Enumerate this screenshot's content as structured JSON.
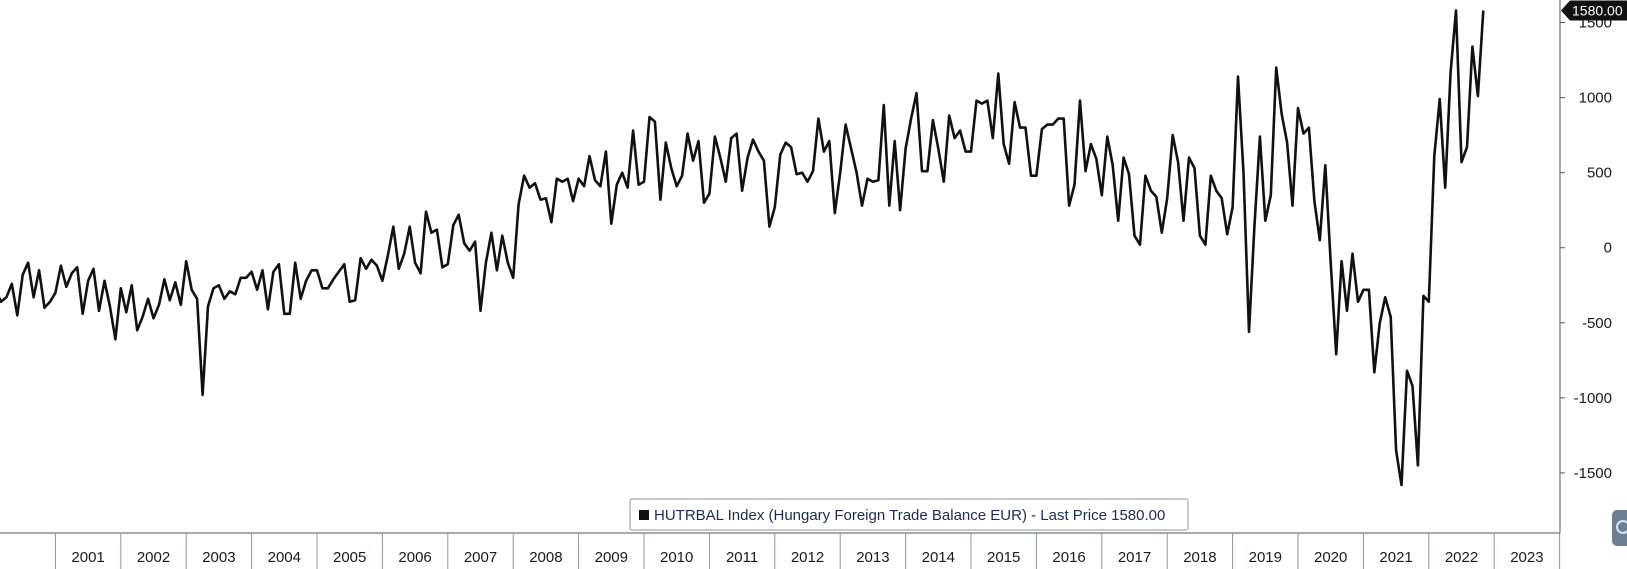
{
  "chart_data": {
    "type": "line",
    "title": "",
    "legend": "HUTRBAL Index (Hungary Foreign Trade Balance EUR) - Last Price 1580.00",
    "legend_placement": "bottom-center",
    "last_price_label": "1580.00",
    "line_color": "#111111",
    "ylim": [
      -1900,
      1650
    ],
    "y_ticks": [
      -1500,
      -1000,
      -500,
      0,
      500,
      1000,
      1500
    ],
    "y_tick_labels": [
      "-1500",
      "-1000",
      "-500",
      "0",
      "500",
      "1000",
      "1500"
    ],
    "x_tick_labels": [
      "2001",
      "2002",
      "2003",
      "2004",
      "2005",
      "2006",
      "2007",
      "2008",
      "2009",
      "2010",
      "2011",
      "2012",
      "2013",
      "2014",
      "2015",
      "2016",
      "2017",
      "2018",
      "2019",
      "2020",
      "2021",
      "2022",
      "2023"
    ],
    "grid": false,
    "series": [
      {
        "start": "2000-01",
        "frequency": "monthly",
        "values": [
          -280,
          -275,
          -360,
          -330,
          -240,
          -450,
          -180,
          -100,
          -330,
          -150,
          -400,
          -360,
          -300,
          -120,
          -260,
          -170,
          -130,
          -440,
          -220,
          -140,
          -420,
          -220,
          -390,
          -610,
          -270,
          -430,
          -250,
          -550,
          -460,
          -340,
          -470,
          -380,
          -210,
          -350,
          -230,
          -380,
          -90,
          -280,
          -340,
          -980,
          -390,
          -270,
          -250,
          -340,
          -290,
          -310,
          -200,
          -200,
          -160,
          -280,
          -150,
          -410,
          -160,
          -110,
          -440,
          -440,
          -100,
          -340,
          -220,
          -150,
          -150,
          -270,
          -270,
          -210,
          -160,
          -110,
          -360,
          -350,
          -70,
          -140,
          -80,
          -120,
          -220,
          -50,
          140,
          -140,
          -40,
          140,
          -100,
          -170,
          240,
          100,
          120,
          -130,
          -110,
          150,
          220,
          30,
          -20,
          40,
          -420,
          -100,
          100,
          -150,
          80,
          -100,
          -200,
          290,
          480,
          400,
          430,
          320,
          330,
          170,
          460,
          440,
          460,
          310,
          460,
          410,
          610,
          450,
          410,
          640,
          160,
          420,
          500,
          400,
          780,
          420,
          440,
          870,
          840,
          320,
          700,
          530,
          410,
          480,
          760,
          580,
          710,
          300,
          360,
          740,
          600,
          440,
          730,
          760,
          380,
          600,
          720,
          640,
          580,
          140,
          270,
          620,
          700,
          670,
          490,
          500,
          440,
          510,
          860,
          640,
          710,
          230,
          500,
          820,
          660,
          500,
          280,
          460,
          440,
          450,
          950,
          280,
          710,
          250,
          660,
          860,
          1030,
          510,
          510,
          850,
          660,
          440,
          880,
          730,
          780,
          640,
          640,
          980,
          960,
          980,
          730,
          1160,
          690,
          560,
          970,
          800,
          800,
          480,
          480,
          790,
          820,
          820,
          860,
          860,
          280,
          420,
          980,
          510,
          690,
          590,
          350,
          740,
          550,
          180,
          600,
          490,
          80,
          20,
          480,
          380,
          340,
          100,
          330,
          750,
          570,
          180,
          600,
          530,
          80,
          20,
          480,
          380,
          330,
          90,
          270,
          1140,
          500,
          -560,
          140,
          740,
          180,
          350,
          1200,
          890,
          700,
          280,
          930,
          760,
          800,
          310,
          50,
          550,
          -100,
          -710,
          -90,
          -420,
          -40,
          -360,
          -280,
          -280,
          -830,
          -500,
          -330,
          -460,
          -1350,
          -1580,
          -820,
          -920,
          -1450,
          -320,
          -360,
          610,
          990,
          400,
          1170,
          1580,
          570,
          670,
          1340,
          1010,
          1580
        ]
      }
    ]
  }
}
